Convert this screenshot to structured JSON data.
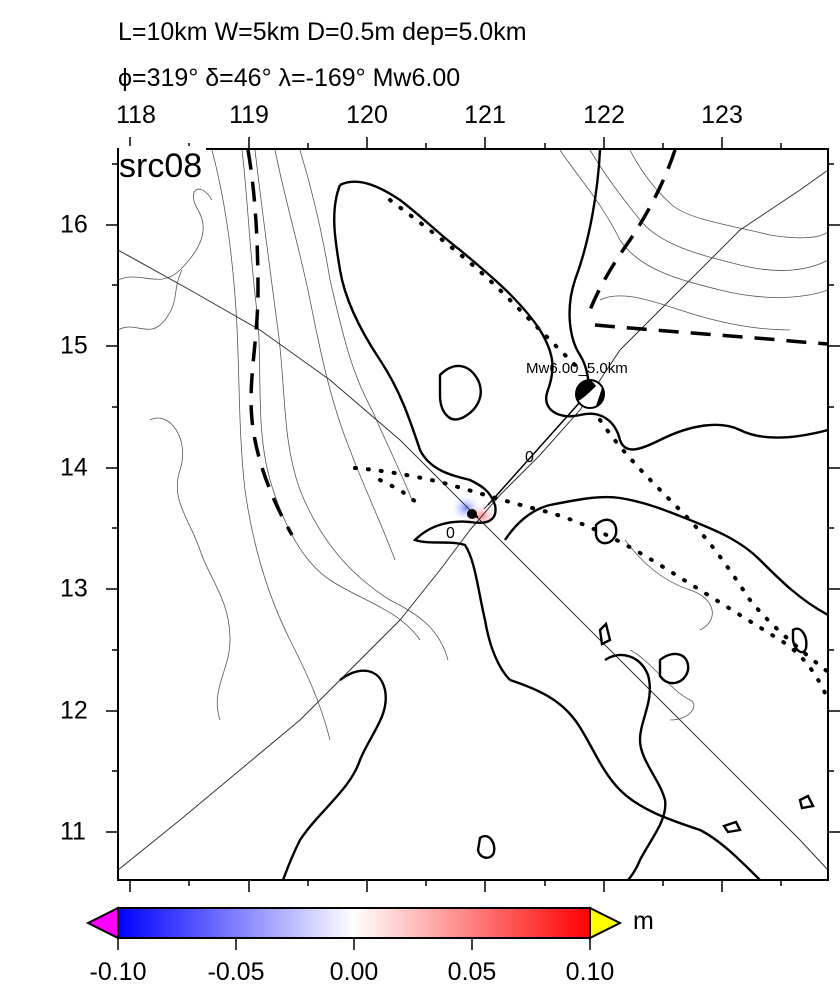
{
  "header": {
    "line1": "L=10km W=5km D=0.5m dep=5.0km",
    "line2": "ϕ=319° δ=46° λ=-169° Mw6.00"
  },
  "panel_label": "src08",
  "axes": {
    "lon_ticks": [
      "118",
      "119",
      "120",
      "121",
      "122",
      "123"
    ],
    "lat_ticks": [
      "16",
      "15",
      "14",
      "13",
      "12",
      "11"
    ]
  },
  "annotations": {
    "mechanism_label": "Mw6.00_5.0km",
    "contour_label_a": "0",
    "contour_label_b": "0"
  },
  "colorbar": {
    "ticks": [
      "-0.10",
      "-0.05",
      "0.00",
      "0.05",
      "0.10"
    ],
    "unit": "m",
    "colors": {
      "low": "#0000ff",
      "mid": "#ffffff",
      "high": "#ff0000",
      "under": "#ff00ff",
      "over": "#ffff00"
    }
  }
}
